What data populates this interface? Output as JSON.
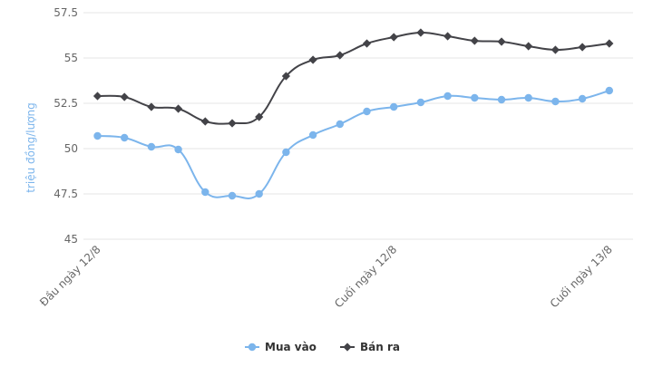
{
  "chart_data": {
    "type": "line",
    "ylabel": "triệu đồng/lượng",
    "ylim": [
      45,
      57.5
    ],
    "yticks": [
      "45",
      "47.5",
      "50",
      "52.5",
      "55",
      "57.5"
    ],
    "x_tick_labels": [
      {
        "index": 0,
        "label": "Đầu ngày 12/8"
      },
      {
        "index": 11,
        "label": "Cuối ngày 12/8"
      },
      {
        "index": 19,
        "label": "Cuối ngày 13/8"
      }
    ],
    "series": [
      {
        "name": "Mua vào",
        "color": "#7cb5ec",
        "marker": "circle",
        "values": [
          50.7,
          50.6,
          50.1,
          49.95,
          47.6,
          47.4,
          47.5,
          49.8,
          50.75,
          51.35,
          52.05,
          52.3,
          52.55,
          52.9,
          52.8,
          52.7,
          52.8,
          52.6,
          52.75,
          53.2
        ]
      },
      {
        "name": "Bán ra",
        "color": "#434348",
        "marker": "diamond",
        "values": [
          52.9,
          52.85,
          52.3,
          52.2,
          51.5,
          51.4,
          51.75,
          54.0,
          54.9,
          55.15,
          55.8,
          56.15,
          56.4,
          56.2,
          55.95,
          55.9,
          55.65,
          55.45,
          55.6,
          55.8
        ]
      }
    ],
    "grid": true,
    "legend": "bottom-center"
  }
}
